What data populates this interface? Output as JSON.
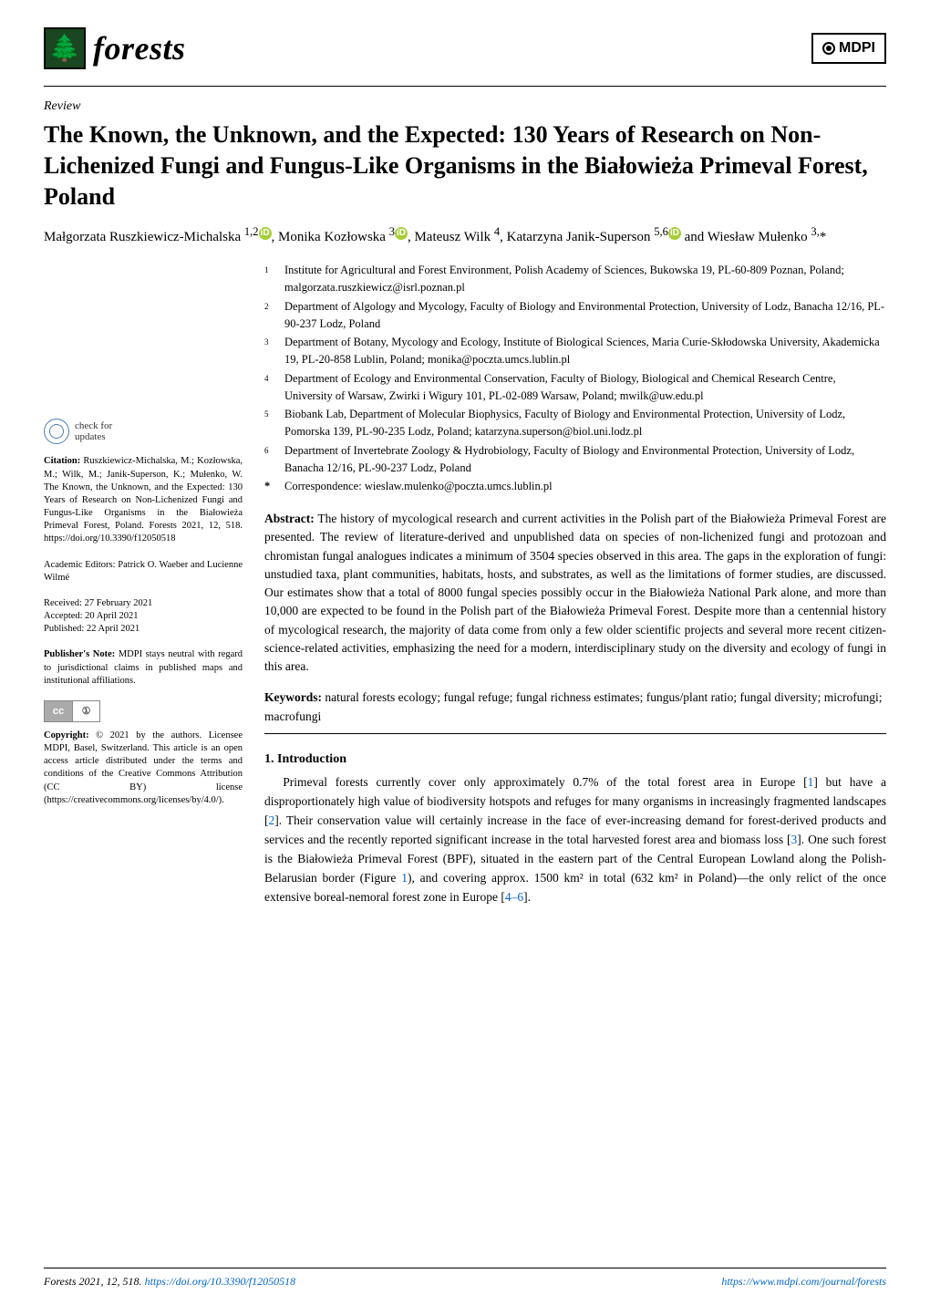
{
  "journal": {
    "name": "forests",
    "logo_glyph": "🌲",
    "logo_bg": "#1a4721",
    "logo_fg": "#a8d08d",
    "publisher": "MDPI"
  },
  "article": {
    "type": "Review",
    "title": "The Known, the Unknown, and the Expected: 130 Years of Research on Non-Lichenized Fungi and Fungus-Like Organisms in the Białowieża Primeval Forest, Poland",
    "authors_html": "Małgorzata Ruszkiewicz-Michalska <sup>1,2</sup><span class='orcid'>iD</span>, Monika Kozłowska <sup>3</sup><span class='orcid'>iD</span>, Mateusz Wilk <sup>4</sup>, Katarzyna Janik-Superson <sup>5,6</sup><span class='orcid'>iD</span> and Wiesław Mułenko <sup>3,</sup>*"
  },
  "affiliations": [
    {
      "num": "1",
      "text": "Institute for Agricultural and Forest Environment, Polish Academy of Sciences, Bukowska 19, PL-60-809 Poznan, Poland; malgorzata.ruszkiewicz@isrl.poznan.pl"
    },
    {
      "num": "2",
      "text": "Department of Algology and Mycology, Faculty of Biology and Environmental Protection, University of Lodz, Banacha 12/16, PL-90-237 Lodz, Poland"
    },
    {
      "num": "3",
      "text": "Department of Botany, Mycology and Ecology, Institute of Biological Sciences, Maria Curie-Skłodowska University, Akademicka 19, PL-20-858 Lublin, Poland; monika@poczta.umcs.lublin.pl"
    },
    {
      "num": "4",
      "text": "Department of Ecology and Environmental Conservation, Faculty of Biology, Biological and Chemical Research Centre, University of Warsaw, Zwirki i Wigury 101, PL-02-089 Warsaw, Poland; mwilk@uw.edu.pl"
    },
    {
      "num": "5",
      "text": "Biobank Lab, Department of Molecular Biophysics, Faculty of Biology and Environmental Protection, University of Lodz, Pomorska 139, PL-90-235 Lodz, Poland; katarzyna.superson@biol.uni.lodz.pl"
    },
    {
      "num": "6",
      "text": "Department of Invertebrate Zoology & Hydrobiology, Faculty of Biology and Environmental Protection, University of Lodz, Banacha 12/16, PL-90-237 Lodz, Poland"
    }
  ],
  "correspondence": {
    "star": "*",
    "text": "Correspondence: wieslaw.mulenko@poczta.umcs.lublin.pl"
  },
  "abstract": {
    "label": "Abstract:",
    "text": " The history of mycological research and current activities in the Polish part of the Białowieża Primeval Forest are presented. The review of literature-derived and unpublished data on species of non-lichenized fungi and protozoan and chromistan fungal analogues indicates a minimum of 3504 species observed in this area. The gaps in the exploration of fungi: unstudied taxa, plant communities, habitats, hosts, and substrates, as well as the limitations of former studies, are discussed. Our estimates show that a total of 8000 fungal species possibly occur in the Białowieża National Park alone, and more than 10,000 are expected to be found in the Polish part of the Białowieża Primeval Forest. Despite more than a centennial history of mycological research, the majority of data come from only a few older scientific projects and several more recent citizen-science-related activities, emphasizing the need for a modern, interdisciplinary study on the diversity and ecology of fungi in this area."
  },
  "keywords": {
    "label": "Keywords:",
    "text": " natural forests ecology; fungal refuge; fungal richness estimates; fungus/plant ratio; fungal diversity; microfungi; macrofungi"
  },
  "section": {
    "heading": "1. Introduction",
    "para": "Primeval forests currently cover only approximately 0.7% of the total forest area in Europe [1] but have a disproportionately high value of biodiversity hotspots and refuges for many organisms in increasingly fragmented landscapes [2]. Their conservation value will certainly increase in the face of ever-increasing demand for forest-derived products and services and the recently reported significant increase in the total harvested forest area and biomass loss [3]. One such forest is the Białowieża Primeval Forest (BPF), situated in the eastern part of the Central European Lowland along the Polish-Belarusian border (Figure 1), and covering approx. 1500 km² in total (632 km² in Poland)—the only relict of the once extensive boreal-nemoral forest zone in Europe [4–6]."
  },
  "sidebar": {
    "updates_label": "check for\nupdates",
    "citation": {
      "label": "Citation:",
      "text": " Ruszkiewicz-Michalska, M.; Kozłowska, M.; Wilk, M.; Janik-Superson, K.; Mułenko, W. The Known, the Unknown, and the Expected: 130 Years of Research on Non-Lichenized Fungi and Fungus-Like Organisms in the Białowieża Primeval Forest, Poland. Forests 2021, 12, 518. https://doi.org/10.3390/f12050518"
    },
    "editors": {
      "text": "Academic Editors: Patrick O. Waeber and Lucienne Wilmé"
    },
    "dates": {
      "received": "Received: 27 February 2021",
      "accepted": "Accepted: 20 April 2021",
      "published": "Published: 22 April 2021"
    },
    "pubnote": {
      "label": "Publisher's Note:",
      "text": " MDPI stays neutral with regard to jurisdictional claims in published maps and institutional affiliations."
    },
    "copyright": {
      "label": "Copyright:",
      "text": " © 2021 by the authors. Licensee MDPI, Basel, Switzerland. This article is an open access article distributed under the terms and conditions of the Creative Commons Attribution (CC BY) license (https://creativecommons.org/licenses/by/4.0/)."
    },
    "cc": {
      "left": "cc",
      "right": "①"
    }
  },
  "footer": {
    "left_text": "Forests 2021, 12, 518. ",
    "left_link": "https://doi.org/10.3390/f12050518",
    "right_link": "https://www.mdpi.com/journal/forests"
  },
  "colors": {
    "link": "#0066cc",
    "orcid": "#a6ce39",
    "updates_ring": "#4a7db5"
  }
}
